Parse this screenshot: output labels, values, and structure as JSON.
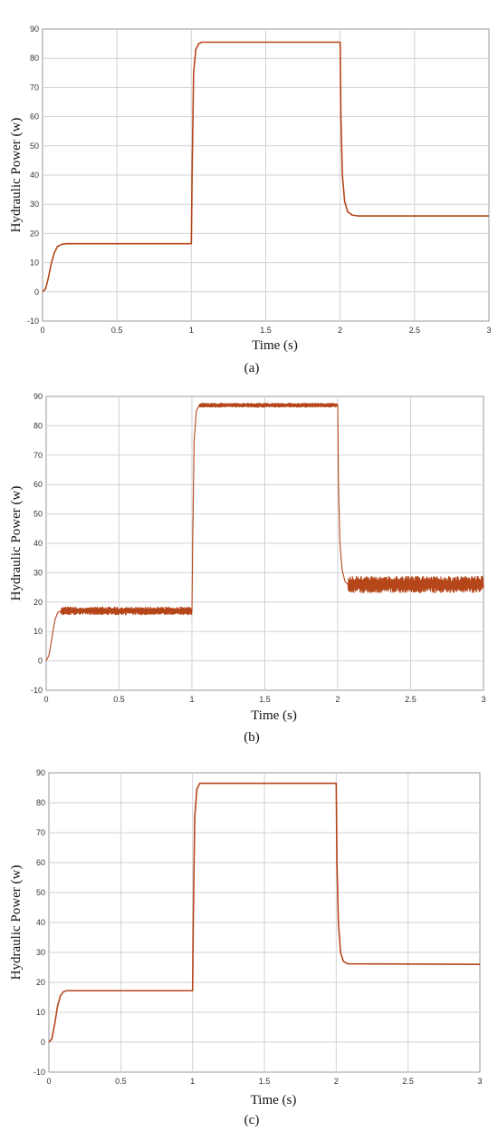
{
  "chart_data": [
    {
      "type": "line",
      "panel_label": "(a)",
      "xlabel": "Time (s)",
      "ylabel": "Hydraulic Power (w)",
      "xlim": [
        0,
        3
      ],
      "ylim": [
        -10,
        90
      ],
      "x_ticks": [
        "0",
        "0.5",
        "1",
        "1.5",
        "2",
        "2.5",
        "3"
      ],
      "y_ticks": [
        "-10",
        "0",
        "10",
        "20",
        "30",
        "40",
        "50",
        "60",
        "70",
        "80",
        "90"
      ],
      "grid": true,
      "color": "#b5461a",
      "series": [
        {
          "x": [
            0,
            0.02,
            0.04,
            0.06,
            0.08,
            0.1,
            0.13,
            0.16,
            1.0,
            1.005,
            1.015,
            1.03,
            1.05,
            1.07,
            2.0,
            2.005,
            2.015,
            2.03,
            2.05,
            2.08,
            2.12,
            3.0
          ],
          "y": [
            0,
            1,
            5,
            10,
            13.5,
            15.5,
            16.3,
            16.5,
            16.5,
            40,
            75,
            83,
            85,
            85.5,
            85.5,
            60,
            40,
            31,
            27.5,
            26.3,
            26,
            26
          ]
        }
      ]
    },
    {
      "type": "line",
      "panel_label": "(b)",
      "xlabel": "Time (s)",
      "ylabel": "Hydraulic Power (w)",
      "xlim": [
        0,
        3
      ],
      "ylim": [
        -10,
        90
      ],
      "x_ticks": [
        "0",
        "0.5",
        "1",
        "1.5",
        "2",
        "2.5",
        "3"
      ],
      "y_ticks": [
        "-10",
        "0",
        "10",
        "20",
        "30",
        "40",
        "50",
        "60",
        "70",
        "80",
        "90"
      ],
      "grid": true,
      "color": "#b5461a",
      "series": [
        {
          "x": [
            0,
            0.02,
            0.04,
            0.06,
            0.08,
            0.1,
            1.0,
            1.005,
            1.015,
            1.03,
            1.05,
            2.0,
            2.005,
            2.015,
            2.03,
            2.05,
            2.07,
            3.0
          ],
          "y": [
            0,
            2,
            8,
            14,
            16.5,
            17,
            17,
            40,
            75,
            85,
            87,
            87,
            60,
            40,
            31,
            27,
            26,
            26
          ],
          "noise_bands": [
            {
              "x_range": [
                0.1,
                1.0
              ],
              "amplitude": 1.3
            },
            {
              "x_range": [
                1.05,
                2.0
              ],
              "amplitude": 0.7
            },
            {
              "x_range": [
                2.07,
                3.0
              ],
              "amplitude": 2.8
            }
          ]
        }
      ]
    },
    {
      "type": "line",
      "panel_label": "(c)",
      "xlabel": "Time (s)",
      "ylabel": "Hydraulic Power (w)",
      "xlim": [
        0,
        3
      ],
      "ylim": [
        -10,
        90
      ],
      "x_ticks": [
        "0",
        "0.5",
        "1",
        "1.5",
        "2",
        "2.5",
        "3"
      ],
      "y_ticks": [
        "-10",
        "0",
        "10",
        "20",
        "30",
        "40",
        "50",
        "60",
        "70",
        "80",
        "90"
      ],
      "grid": true,
      "color": "#b5461a",
      "series": [
        {
          "x": [
            0,
            0.02,
            0.04,
            0.06,
            0.08,
            0.1,
            0.12,
            1.0,
            1.005,
            1.015,
            1.03,
            1.05,
            2.0,
            2.005,
            2.015,
            2.03,
            2.05,
            2.08,
            3.0
          ],
          "y": [
            0,
            1,
            6,
            12,
            15.5,
            16.8,
            17.2,
            17.2,
            40,
            75,
            84.5,
            86.5,
            86.5,
            60,
            40,
            30,
            27,
            26.2,
            26
          ]
        }
      ]
    }
  ]
}
